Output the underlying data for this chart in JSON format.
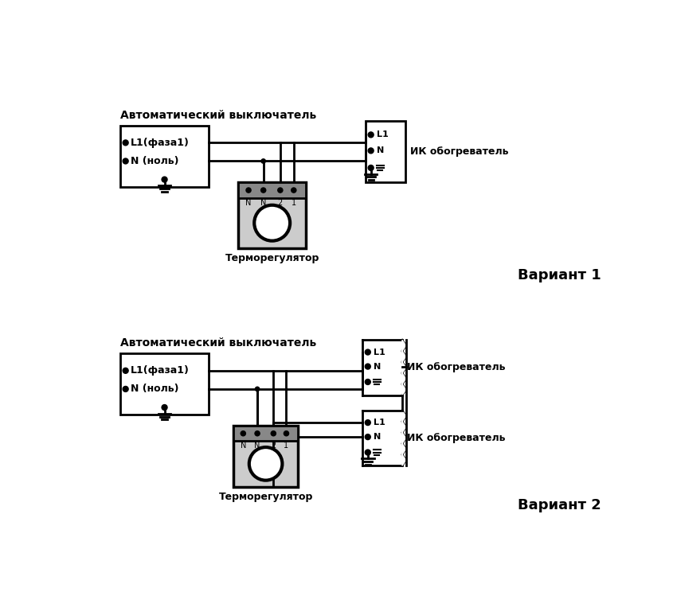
{
  "background": "#ffffff",
  "variant1_label": "Вариант 1",
  "variant2_label": "Вариант 2",
  "avtomat_label": "Автоматический выключатель",
  "termor_label": "Терморегулятор",
  "ik_label": "ИК обогреватель",
  "l1_faza": "L1(фаза1)",
  "n_nol": "N (ноль)",
  "black": "#000000",
  "gray": "#cccccc",
  "dark_gray": "#888888"
}
